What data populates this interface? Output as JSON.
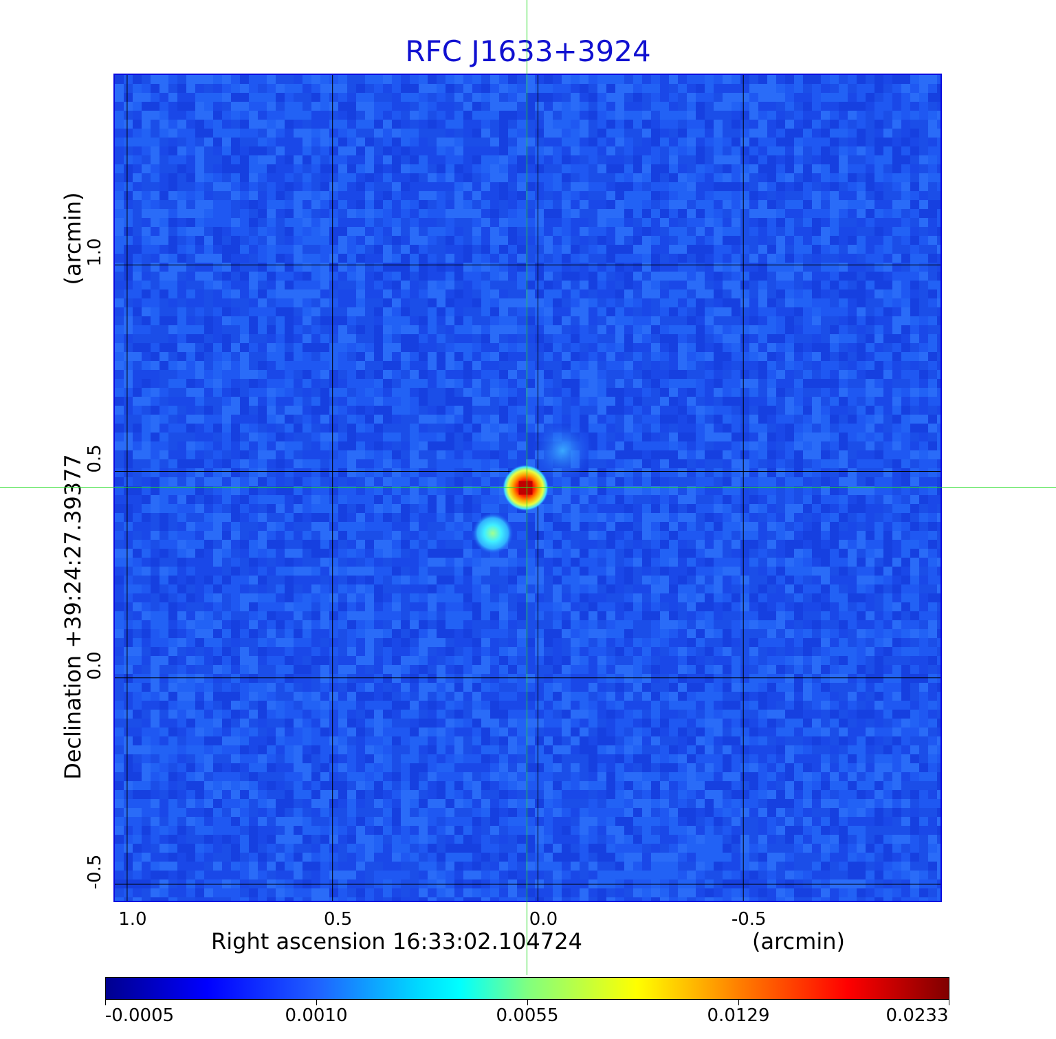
{
  "chart_data": {
    "type": "heatmap",
    "title": "RFC J1633+3924",
    "xlabel": "Right ascension  16:33:02.104724",
    "xunit": "(arcmin)",
    "ylabel": "Declination  +39:24:27.39377",
    "yunit": "(arcmin)",
    "x_ticks": [
      "1.0",
      "0.5",
      "0.0",
      "-0.5"
    ],
    "y_ticks": [
      "1.0",
      "0.5",
      "0.0",
      "-0.5"
    ],
    "x_tick_values": [
      1.0,
      0.5,
      0.0,
      -0.5
    ],
    "y_tick_values": [
      1.0,
      0.5,
      0.0,
      -0.5
    ],
    "xlim": [
      1.03,
      -0.98
    ],
    "ylim": [
      -0.54,
      1.46
    ],
    "grid": true,
    "crosshair": {
      "x": 0.03,
      "y": 0.46
    },
    "sources": [
      {
        "x": 0.03,
        "y": 0.46,
        "peak": 0.0233
      },
      {
        "x": 0.11,
        "y": 0.35,
        "peak": 0.0055
      },
      {
        "x": -0.06,
        "y": 0.55,
        "peak": 0.0014
      }
    ],
    "colorbar": {
      "labels": [
        "-0.0005",
        "0.0010",
        "0.0055",
        "0.0129",
        "0.0233"
      ],
      "colormap": "jet"
    }
  }
}
